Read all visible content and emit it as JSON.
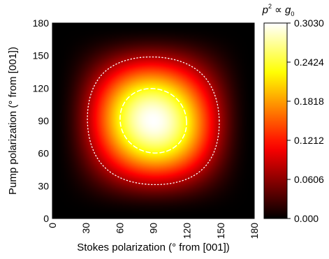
{
  "chart_data": {
    "type": "heatmap",
    "title": "",
    "xlabel": "Stokes polarization (° from [001])",
    "ylabel": "Pump polarization (° from [001])",
    "xlim": [
      0,
      180
    ],
    "ylim": [
      0,
      180
    ],
    "x_ticks": [
      0,
      30,
      60,
      90,
      120,
      150,
      180
    ],
    "y_ticks": [
      0,
      30,
      60,
      90,
      120,
      150,
      180
    ],
    "x_tick_labels": [
      "0",
      "30",
      "60",
      "90",
      "120",
      "150",
      "180"
    ],
    "y_tick_labels": [
      "0",
      "30",
      "60",
      "90",
      "120",
      "150",
      "180"
    ],
    "x_tick_rotation": "vertical",
    "colormap": "hot",
    "colorbar": {
      "title_base": "p",
      "title_sup": "2",
      "title_mid": " ∝ g",
      "title_sub": "0",
      "min": 0,
      "max": 0.303,
      "tick_values": [
        0.303,
        0.2424,
        0.1818,
        0.1212,
        0.0606,
        0.0
      ],
      "tick_labels": [
        "0.3030",
        "0.2424",
        "0.1818",
        "0.1212",
        "0.0606",
        "0.000"
      ],
      "placement": "right"
    },
    "peak": {
      "x": 90,
      "y": 90,
      "value": 0.303
    },
    "contours": [
      {
        "style": "dashed",
        "color": "#ffffff",
        "level_fraction": 0.75
      },
      {
        "style": "dotted",
        "color": "#ffffff",
        "level_fraction": 0.25
      }
    ],
    "grid": false,
    "colors": {
      "hot_low": "#000000",
      "hot_mid1": "#b50000",
      "hot_mid2": "#ff6a00",
      "hot_high": "#ffffff",
      "contour": "#ffffff"
    }
  }
}
